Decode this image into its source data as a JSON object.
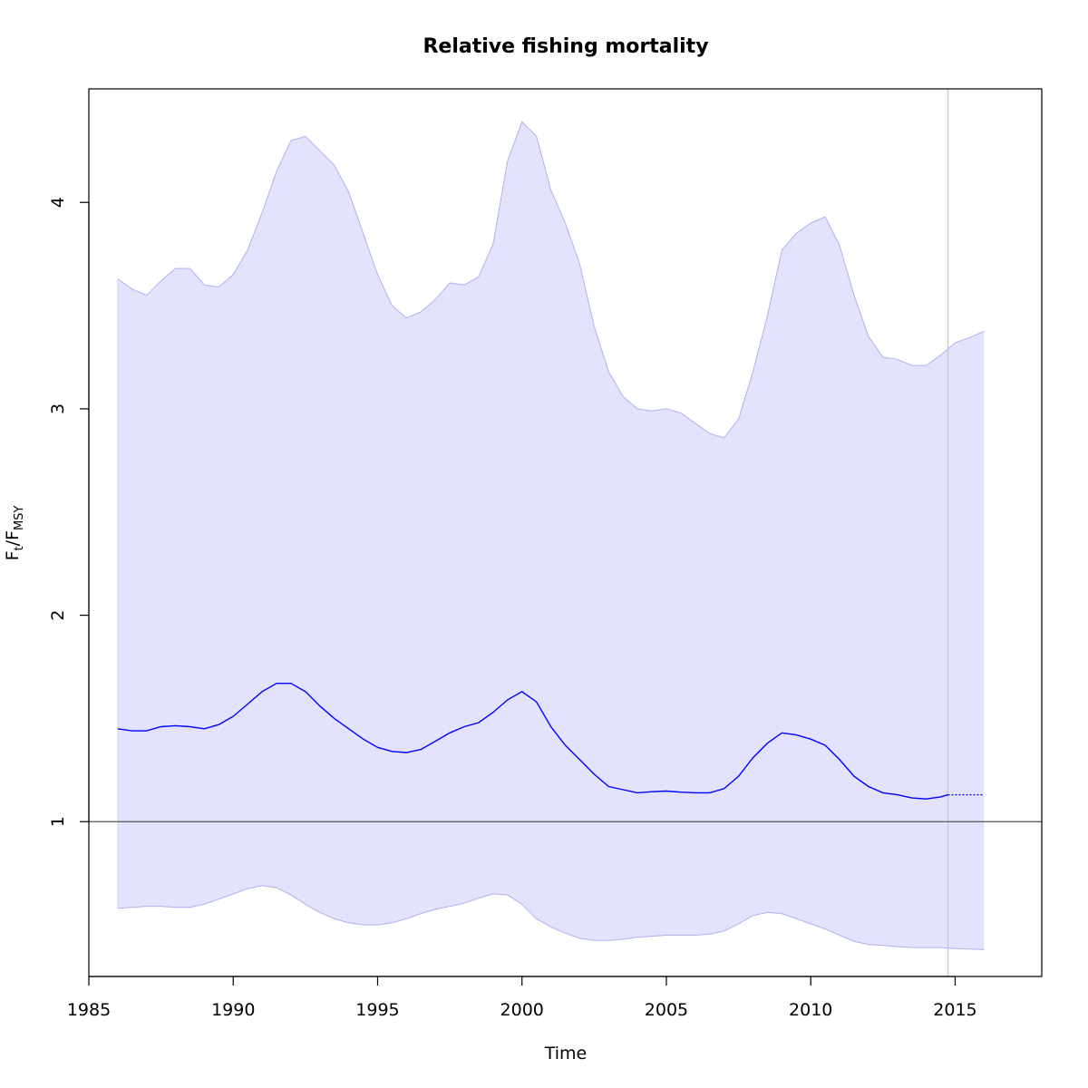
{
  "chart_data": {
    "type": "line",
    "title": "Relative fishing mortality",
    "xlabel": "Time",
    "ylabel": {
      "main": "F",
      "sub1": "t",
      "mid": "/F",
      "sub2": "MSY"
    },
    "xlim": [
      1985,
      2018
    ],
    "ylim": [
      0.25,
      4.55
    ],
    "xticks": [
      1985,
      1990,
      1995,
      2000,
      2005,
      2010,
      2015
    ],
    "yticks": [
      1,
      2,
      3,
      4
    ],
    "reference_hline": 1,
    "reference_vline": 2014.75,
    "colors": {
      "line": "#0000ff",
      "band_fill": "#e3e3fd",
      "band_edge": "#b0b0f2",
      "vline": "#cccccc",
      "hline": "#555555"
    },
    "series": [
      {
        "kind": "estimate",
        "x": [
          1986,
          1986.5,
          1987,
          1987.5,
          1988,
          1988.5,
          1989,
          1989.5,
          1990,
          1990.5,
          1991,
          1991.5,
          1992,
          1992.5,
          1993,
          1993.5,
          1994,
          1994.5,
          1995,
          1995.5,
          1996,
          1996.5,
          1997,
          1997.5,
          1998,
          1998.5,
          1999,
          1999.5,
          2000,
          2000.5,
          2001,
          2001.5,
          2002,
          2002.5,
          2003,
          2003.5,
          2004,
          2004.5,
          2005,
          2005.5,
          2006,
          2006.5,
          2007,
          2007.5,
          2008,
          2008.5,
          2009,
          2009.5,
          2010,
          2010.5,
          2011,
          2011.5,
          2012,
          2012.5,
          2013,
          2013.5,
          2014,
          2014.5,
          2014.75
        ],
        "y": [
          1.45,
          1.44,
          1.44,
          1.46,
          1.465,
          1.46,
          1.45,
          1.47,
          1.51,
          1.57,
          1.63,
          1.67,
          1.67,
          1.63,
          1.56,
          1.5,
          1.45,
          1.4,
          1.36,
          1.34,
          1.335,
          1.35,
          1.39,
          1.43,
          1.46,
          1.48,
          1.53,
          1.59,
          1.63,
          1.58,
          1.46,
          1.37,
          1.3,
          1.23,
          1.17,
          1.155,
          1.14,
          1.145,
          1.148,
          1.143,
          1.14,
          1.14,
          1.16,
          1.22,
          1.31,
          1.38,
          1.43,
          1.42,
          1.4,
          1.37,
          1.3,
          1.22,
          1.17,
          1.14,
          1.13,
          1.115,
          1.11,
          1.12,
          1.13
        ]
      },
      {
        "kind": "prediction",
        "x": [
          2014.75,
          2016
        ],
        "y": [
          1.13,
          1.13
        ]
      },
      {
        "kind": "upper_ci",
        "x": [
          1986,
          1986.5,
          1987,
          1987.5,
          1988,
          1988.5,
          1989,
          1989.5,
          1990,
          1990.5,
          1991,
          1991.5,
          1992,
          1992.5,
          1993,
          1993.5,
          1994,
          1994.5,
          1995,
          1995.5,
          1996,
          1996.5,
          1997,
          1997.5,
          1998,
          1998.5,
          1999,
          1999.5,
          2000,
          2000.5,
          2001,
          2001.5,
          2002,
          2002.5,
          2003,
          2003.5,
          2004,
          2004.5,
          2005,
          2005.5,
          2006,
          2006.5,
          2007,
          2007.5,
          2008,
          2008.5,
          2009,
          2009.5,
          2010,
          2010.5,
          2011,
          2011.5,
          2012,
          2012.5,
          2013,
          2013.5,
          2014,
          2014.5,
          2015,
          2015.5,
          2016
        ],
        "y": [
          3.63,
          3.58,
          3.55,
          3.62,
          3.68,
          3.68,
          3.6,
          3.59,
          3.65,
          3.77,
          3.95,
          4.15,
          4.3,
          4.32,
          4.25,
          4.18,
          4.05,
          3.85,
          3.65,
          3.5,
          3.44,
          3.47,
          3.53,
          3.61,
          3.6,
          3.64,
          3.8,
          4.2,
          4.39,
          4.32,
          4.06,
          3.9,
          3.7,
          3.4,
          3.18,
          3.06,
          3.0,
          2.99,
          3.0,
          2.98,
          2.93,
          2.88,
          2.86,
          2.95,
          3.18,
          3.45,
          3.77,
          3.85,
          3.9,
          3.93,
          3.79,
          3.55,
          3.35,
          3.25,
          3.24,
          3.21,
          3.21,
          3.26,
          3.32,
          3.345,
          3.375
        ]
      },
      {
        "kind": "lower_ci",
        "x": [
          1986,
          1986.5,
          1987,
          1987.5,
          1988,
          1988.5,
          1989,
          1989.5,
          1990,
          1990.5,
          1991,
          1991.5,
          1992,
          1992.5,
          1993,
          1993.5,
          1994,
          1994.5,
          1995,
          1995.5,
          1996,
          1996.5,
          1997,
          1997.5,
          1998,
          1998.5,
          1999,
          1999.5,
          2000,
          2000.5,
          2001,
          2001.5,
          2002,
          2002.5,
          2003,
          2003.5,
          2004,
          2004.5,
          2005,
          2005.5,
          2006,
          2006.5,
          2007,
          2007.5,
          2008,
          2008.5,
          2009,
          2009.5,
          2010,
          2010.5,
          2011,
          2011.5,
          2012,
          2012.5,
          2013,
          2013.5,
          2014,
          2014.5,
          2015,
          2015.5,
          2016
        ],
        "y": [
          0.58,
          0.585,
          0.59,
          0.59,
          0.585,
          0.585,
          0.6,
          0.625,
          0.65,
          0.675,
          0.69,
          0.68,
          0.645,
          0.6,
          0.56,
          0.53,
          0.51,
          0.5,
          0.5,
          0.51,
          0.53,
          0.555,
          0.575,
          0.59,
          0.605,
          0.63,
          0.65,
          0.645,
          0.6,
          0.53,
          0.49,
          0.46,
          0.435,
          0.425,
          0.425,
          0.43,
          0.44,
          0.445,
          0.45,
          0.45,
          0.45,
          0.455,
          0.47,
          0.505,
          0.545,
          0.56,
          0.555,
          0.53,
          0.505,
          0.48,
          0.45,
          0.42,
          0.405,
          0.4,
          0.395,
          0.39,
          0.39,
          0.39,
          0.385,
          0.383,
          0.38
        ]
      }
    ]
  }
}
